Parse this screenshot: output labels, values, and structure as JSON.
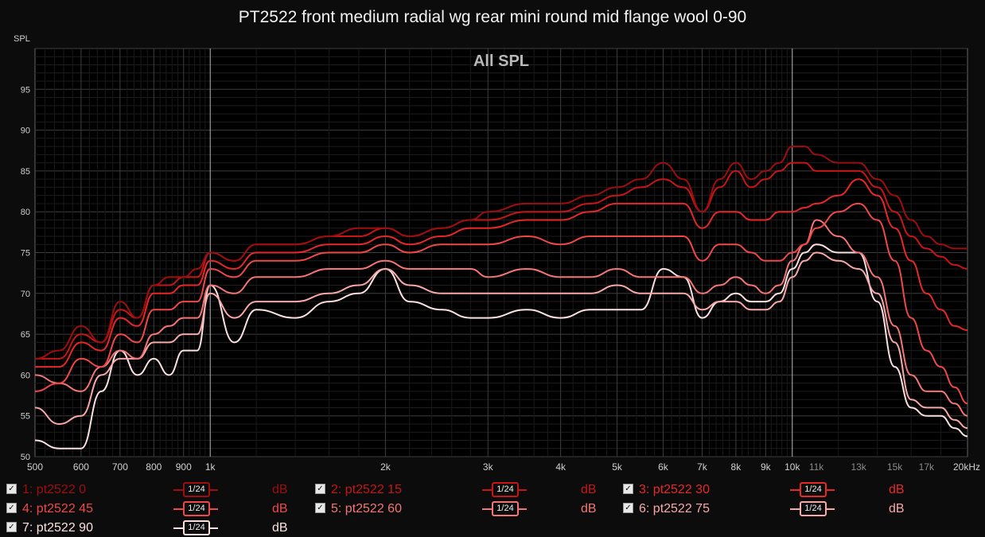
{
  "title": "PT2522 front medium radial wg rear mini round mid flange wool 0-90",
  "chart_data": {
    "type": "line",
    "title": "All SPL",
    "ylabel": "SPL",
    "xscale": "log",
    "xlim": [
      500,
      20000
    ],
    "ylim": [
      50,
      100
    ],
    "grid": true,
    "xticks": [
      {
        "v": 500,
        "label": "500"
      },
      {
        "v": 600,
        "label": "600"
      },
      {
        "v": 700,
        "label": "700"
      },
      {
        "v": 800,
        "label": "800"
      },
      {
        "v": 900,
        "label": "900"
      },
      {
        "v": 1000,
        "label": "1k"
      },
      {
        "v": 2000,
        "label": "2k"
      },
      {
        "v": 3000,
        "label": "3k"
      },
      {
        "v": 4000,
        "label": "4k"
      },
      {
        "v": 5000,
        "label": "5k"
      },
      {
        "v": 6000,
        "label": "6k"
      },
      {
        "v": 7000,
        "label": "7k"
      },
      {
        "v": 8000,
        "label": "8k"
      },
      {
        "v": 9000,
        "label": "9k"
      },
      {
        "v": 10000,
        "label": "10k"
      },
      {
        "v": 11000,
        "label": "11k"
      },
      {
        "v": 13000,
        "label": "13k"
      },
      {
        "v": 15000,
        "label": "15k"
      },
      {
        "v": 17000,
        "label": "17k"
      },
      {
        "v": 20000,
        "label": "20kHz"
      }
    ],
    "yticks": [
      50,
      55,
      60,
      65,
      70,
      75,
      80,
      85,
      90,
      95
    ],
    "x": [
      500,
      550,
      600,
      650,
      700,
      750,
      800,
      850,
      900,
      950,
      1000,
      1100,
      1200,
      1400,
      1600,
      1800,
      2000,
      2200,
      2500,
      2800,
      3000,
      3500,
      4000,
      4500,
      5000,
      5500,
      6000,
      6500,
      7000,
      7500,
      8000,
      8500,
      9000,
      9500,
      10000,
      10500,
      11000,
      12000,
      13000,
      14000,
      15000,
      16000,
      17000,
      18000,
      19000,
      20000
    ],
    "series": [
      {
        "name": "pt2522 0",
        "color": "#9e0e0e",
        "values": [
          62,
          63,
          66,
          64,
          69,
          67,
          71,
          72,
          72,
          73,
          75,
          74,
          76,
          76,
          77,
          78,
          78,
          77,
          78,
          79,
          80,
          81,
          81,
          82,
          83,
          84,
          86,
          84,
          80,
          84,
          86,
          84,
          85,
          86,
          88,
          88,
          87,
          86,
          86,
          84,
          82,
          79,
          77,
          76,
          75.5,
          75.5
        ]
      },
      {
        "name": "pt2522 15",
        "color": "#c81515",
        "values": [
          62,
          62,
          65,
          64,
          68,
          67,
          71,
          71,
          72,
          72,
          75,
          74,
          76,
          76,
          77,
          77,
          78,
          77,
          78,
          79,
          79,
          80,
          80,
          81,
          82,
          83,
          84,
          83,
          80,
          83,
          85,
          83,
          84,
          85,
          86,
          86,
          85,
          85,
          85,
          83,
          80,
          77,
          75.5,
          74.5,
          73.5,
          73
        ]
      },
      {
        "name": "pt2522 30",
        "color": "#e82828",
        "values": [
          61,
          61,
          64,
          63,
          67,
          66,
          70,
          70,
          71,
          71,
          74,
          73,
          75,
          75,
          76,
          76,
          77,
          76,
          77,
          78,
          78,
          79,
          79,
          80,
          81,
          81,
          81,
          81,
          78,
          80,
          80,
          79,
          79,
          80,
          80,
          80.5,
          81,
          82,
          84,
          82,
          78,
          74,
          70,
          68,
          66,
          65.5
        ]
      },
      {
        "name": "pt2522 45",
        "color": "#f04848",
        "values": [
          58,
          59,
          62,
          61,
          65,
          64,
          68,
          68,
          69,
          69,
          73,
          72,
          74,
          74,
          75,
          75,
          76,
          75,
          76,
          76,
          76,
          77,
          76,
          77,
          77,
          77,
          77,
          77,
          74,
          76,
          76,
          75,
          74,
          74,
          75,
          76,
          78,
          80,
          81,
          79,
          74,
          67,
          63,
          61,
          58.5,
          56.5
        ]
      },
      {
        "name": "pt2522 60",
        "color": "#f57575",
        "values": [
          60,
          59,
          58,
          61,
          63,
          62,
          65,
          66,
          67,
          67,
          71,
          70,
          72,
          72,
          73,
          73,
          74,
          73,
          73,
          73,
          72,
          73,
          72,
          72,
          73,
          72,
          72,
          72,
          70,
          71,
          72,
          71,
          70,
          71,
          74,
          76,
          79,
          77,
          75,
          72,
          66,
          60,
          58,
          58,
          56.5,
          55
        ]
      },
      {
        "name": "pt2522 75",
        "color": "#f9a8a8",
        "values": [
          56,
          54,
          55,
          60,
          62,
          62,
          64,
          64,
          65,
          65,
          70,
          67,
          69,
          69,
          70,
          71,
          73,
          71,
          70,
          70,
          70,
          70,
          70,
          70,
          71,
          70,
          70,
          70,
          68,
          69,
          69,
          68,
          68,
          69,
          72,
          74,
          75,
          74,
          73,
          70,
          64,
          57,
          56,
          56,
          54.5,
          53.5
        ]
      },
      {
        "name": "pt2522 90",
        "color": "#fbe0e0",
        "values": [
          52,
          51,
          51,
          58,
          63,
          60,
          62,
          60,
          63,
          63,
          71,
          64,
          68,
          67,
          69,
          70,
          73,
          69,
          68,
          67,
          67,
          68,
          67,
          68,
          68,
          68,
          73,
          72,
          67,
          69,
          70,
          69,
          69,
          70,
          73,
          75,
          76,
          75,
          75,
          69,
          61,
          56,
          55,
          55,
          53.5,
          52.5
        ]
      }
    ],
    "legend": [
      {
        "check": "✓",
        "label": "1: pt2522 0",
        "smooth": "1/24",
        "unit": "dB"
      },
      {
        "check": "✓",
        "label": "2: pt2522 15",
        "smooth": "1/24",
        "unit": "dB"
      },
      {
        "check": "✓",
        "label": "3: pt2522 30",
        "smooth": "1/24",
        "unit": "dB"
      },
      {
        "check": "✓",
        "label": "4: pt2522 45",
        "smooth": "1/24",
        "unit": "dB"
      },
      {
        "check": "✓",
        "label": "5: pt2522 60",
        "smooth": "1/24",
        "unit": "dB"
      },
      {
        "check": "✓",
        "label": "6: pt2522 75",
        "smooth": "1/24",
        "unit": "dB"
      },
      {
        "check": "✓",
        "label": "7: pt2522 90",
        "smooth": "1/24",
        "unit": "dB"
      }
    ]
  }
}
